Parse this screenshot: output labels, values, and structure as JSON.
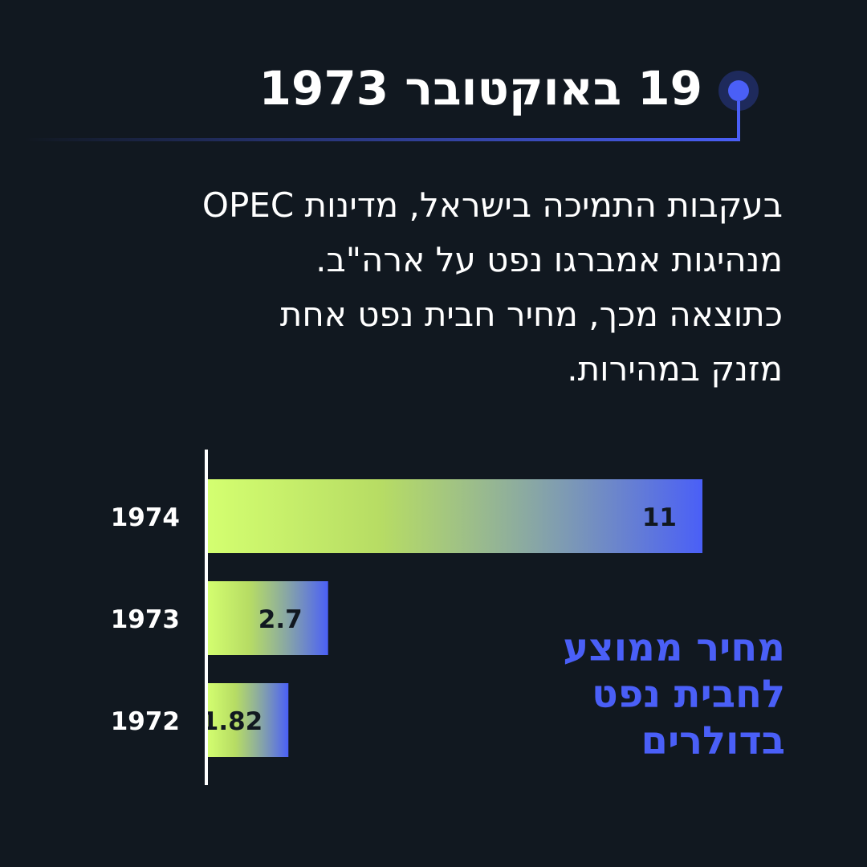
{
  "header": {
    "title": "19 באוקטובר 1973"
  },
  "body": {
    "lines": [
      "בעקבות התמיכה בישראל, מדינות OPEC",
      "מנהיגות אמברגו נפט על ארה\"ב.",
      "כתוצאה מכך, מחיר חבית נפט אחת",
      "מזנק במהירות."
    ]
  },
  "chart_caption": {
    "lines": [
      "מחיר ממוצע",
      "לחבית נפט",
      "בדולרים"
    ]
  },
  "colors": {
    "accent": "#4a5ff7",
    "bar_start": "#d4ff70",
    "background": "#111820"
  },
  "chart_data": {
    "type": "bar",
    "orientation": "horizontal",
    "categories": [
      "1974",
      "1973",
      "1972"
    ],
    "values": [
      11,
      2.7,
      1.82
    ],
    "value_labels": [
      "11",
      "2.7",
      "1.82"
    ],
    "xlim": [
      0,
      11
    ],
    "grid": false,
    "title": "",
    "xlabel": "",
    "ylabel": "מחיר ממוצע לחבית נפט בדולרים"
  }
}
